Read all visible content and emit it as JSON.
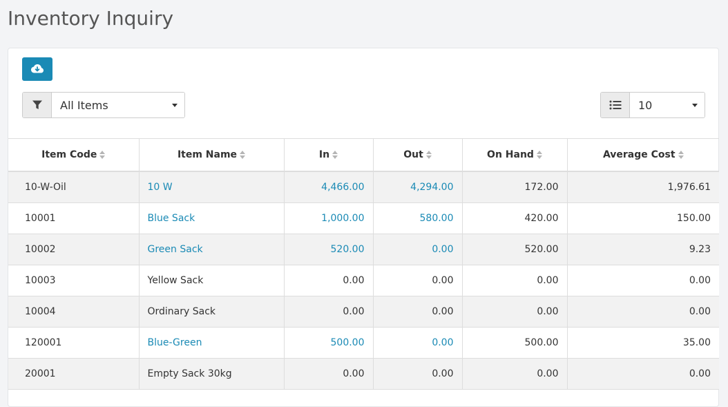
{
  "page": {
    "title": "Inventory Inquiry"
  },
  "toolbar": {
    "download_icon": "cloud-download-icon"
  },
  "filter": {
    "icon": "filter-icon",
    "selected": "All Items"
  },
  "page_length": {
    "icon": "list-icon",
    "selected": "10"
  },
  "table": {
    "columns": [
      "Item Code",
      "Item Name",
      "In",
      "Out",
      "On Hand",
      "Average Cost"
    ],
    "rows": [
      {
        "code": "10-W-Oil",
        "name": "10 W",
        "in": "4,466.00",
        "out": "4,294.00",
        "on_hand": "172.00",
        "avg_cost": "1,976.61",
        "name_link": true,
        "in_link": true,
        "out_link": true
      },
      {
        "code": "10001",
        "name": "Blue Sack",
        "in": "1,000.00",
        "out": "580.00",
        "on_hand": "420.00",
        "avg_cost": "150.00",
        "name_link": true,
        "in_link": true,
        "out_link": true
      },
      {
        "code": "10002",
        "name": "Green Sack",
        "in": "520.00",
        "out": "0.00",
        "on_hand": "520.00",
        "avg_cost": "9.23",
        "name_link": true,
        "in_link": true,
        "out_link": true
      },
      {
        "code": "10003",
        "name": "Yellow Sack",
        "in": "0.00",
        "out": "0.00",
        "on_hand": "0.00",
        "avg_cost": "0.00",
        "name_link": false,
        "in_link": false,
        "out_link": false
      },
      {
        "code": "10004",
        "name": "Ordinary Sack",
        "in": "0.00",
        "out": "0.00",
        "on_hand": "0.00",
        "avg_cost": "0.00",
        "name_link": false,
        "in_link": false,
        "out_link": false
      },
      {
        "code": "120001",
        "name": "Blue-Green",
        "in": "500.00",
        "out": "0.00",
        "on_hand": "500.00",
        "avg_cost": "35.00",
        "name_link": true,
        "in_link": true,
        "out_link": true
      },
      {
        "code": "20001",
        "name": "Empty Sack 30kg",
        "in": "0.00",
        "out": "0.00",
        "on_hand": "0.00",
        "avg_cost": "0.00",
        "name_link": false,
        "in_link": false,
        "out_link": false
      }
    ]
  },
  "colors": {
    "accent": "#1a8ab5",
    "stripe": "#f2f2f2"
  }
}
